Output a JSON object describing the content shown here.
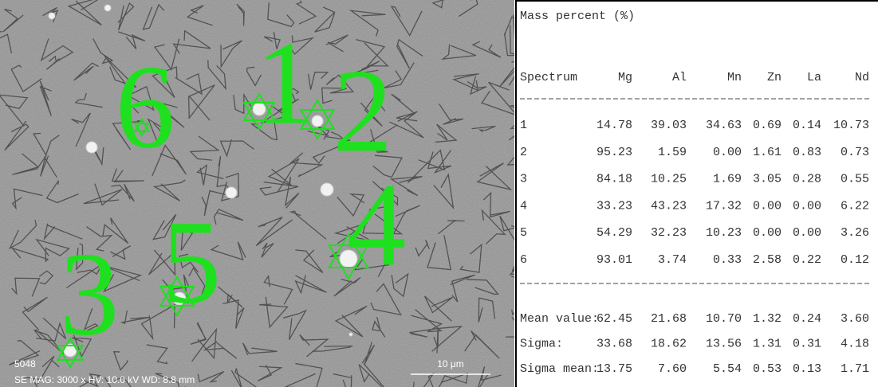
{
  "micrograph": {
    "labels": [
      "1",
      "2",
      "3",
      "4",
      "5",
      "6"
    ],
    "info_id": "5048",
    "info": "SE  MAG: 3000 x  HV: 10.0 kV  WD: 8.8 mm",
    "scale_bar": "10 μm"
  },
  "table": {
    "title": "Mass percent (%)",
    "header": [
      "Spectrum",
      "Mg",
      "Al",
      "Mn",
      "Zn",
      "La",
      "Nd"
    ],
    "rows": [
      [
        "1",
        "14.78",
        "39.03",
        "34.63",
        "0.69",
        "0.14",
        "10.73"
      ],
      [
        "2",
        "95.23",
        "1.59",
        "0.00",
        "1.61",
        "0.83",
        "0.73"
      ],
      [
        "3",
        "84.18",
        "10.25",
        "1.69",
        "3.05",
        "0.28",
        "0.55"
      ],
      [
        "4",
        "33.23",
        "43.23",
        "17.32",
        "0.00",
        "0.00",
        "6.22"
      ],
      [
        "5",
        "54.29",
        "32.23",
        "10.23",
        "0.00",
        "0.00",
        "3.26"
      ],
      [
        "6",
        "93.01",
        "3.74",
        "0.33",
        "2.58",
        "0.22",
        "0.12"
      ]
    ],
    "summary": [
      [
        "Mean value:",
        "62.45",
        "21.68",
        "10.70",
        "1.32",
        "0.24",
        "3.60"
      ],
      [
        "Sigma:",
        "33.68",
        "18.62",
        "13.56",
        "1.31",
        "0.31",
        "4.18"
      ],
      [
        "Sigma mean:",
        "13.75",
        "7.60",
        "5.54",
        "0.53",
        "0.13",
        "1.71"
      ]
    ]
  }
}
